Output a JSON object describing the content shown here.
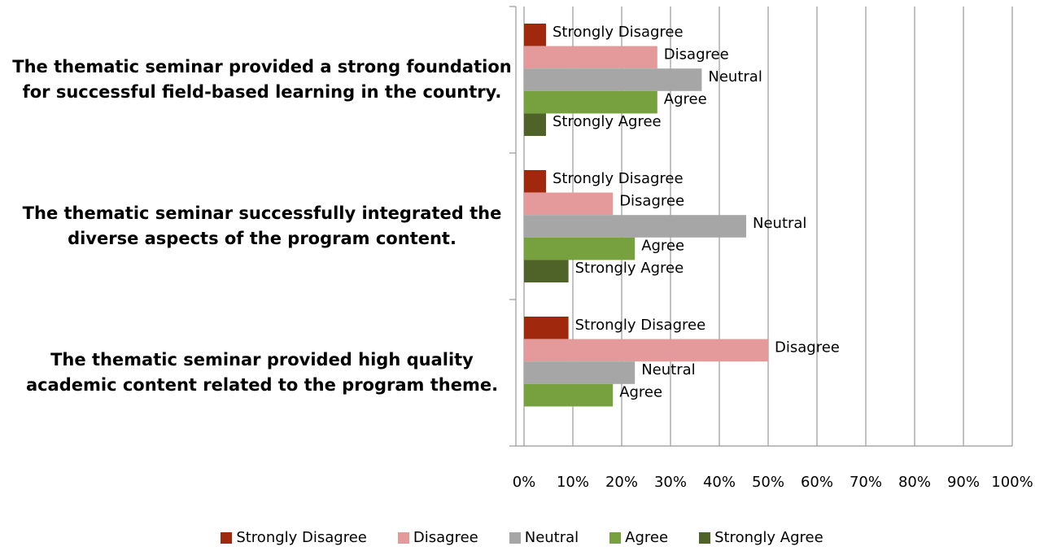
{
  "chart_data": {
    "type": "bar",
    "orientation": "horizontal",
    "categories": [
      "The thematic seminar provided a strong foundation for successful field-based learning in the country.",
      "The thematic seminar successfully integrated the diverse aspects of the program content.",
      "The thematic seminar provided high quality academic content related to the program theme."
    ],
    "series": [
      {
        "name": "Strongly Disagree",
        "color": "#a0290d",
        "values": [
          4.5,
          4.5,
          9.1
        ]
      },
      {
        "name": "Disagree",
        "color": "#e49a9a",
        "values": [
          27.3,
          18.2,
          50
        ]
      },
      {
        "name": "Neutral",
        "color": "#a6a6a6",
        "values": [
          36.4,
          45.5,
          22.7
        ]
      },
      {
        "name": "Agree",
        "color": "#77a03f",
        "values": [
          27.3,
          22.7,
          18.2
        ]
      },
      {
        "name": "Strongly Agree",
        "color": "#4f6228",
        "values": [
          4.5,
          9.1,
          null
        ]
      }
    ],
    "xlim": [
      0,
      100
    ],
    "xticks": [
      {
        "value": 0,
        "label": "0%"
      },
      {
        "value": 10,
        "label": "10%"
      },
      {
        "value": 20,
        "label": "20%"
      },
      {
        "value": 30,
        "label": "30%"
      },
      {
        "value": 40,
        "label": "40%"
      },
      {
        "value": 50,
        "label": "50%"
      },
      {
        "value": 60,
        "label": "60%"
      },
      {
        "value": 70,
        "label": "70%"
      },
      {
        "value": 80,
        "label": "80%"
      },
      {
        "value": 90,
        "label": "90%"
      },
      {
        "value": 100,
        "label": "100%"
      }
    ],
    "grid": true,
    "legend": "bottom"
  }
}
